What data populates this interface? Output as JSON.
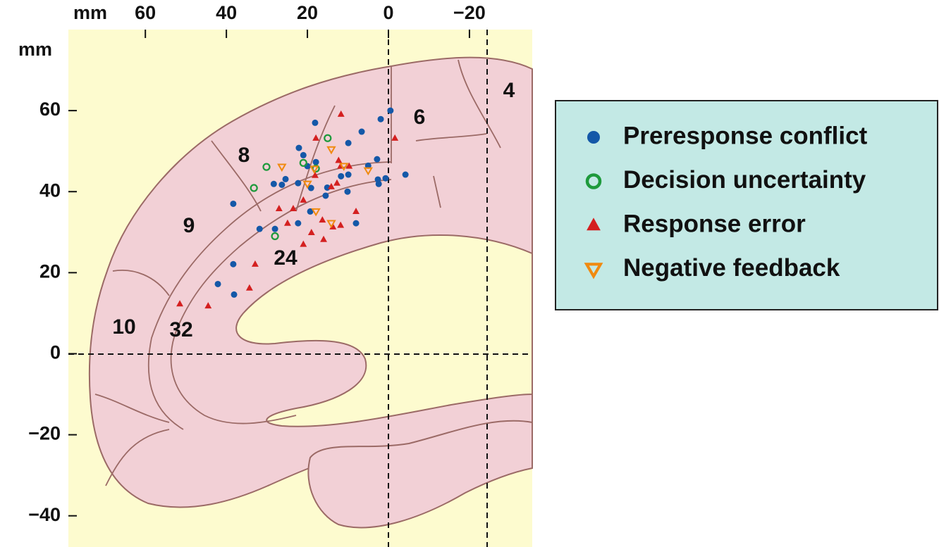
{
  "chart_data": {
    "type": "scatter",
    "x_label": "mm",
    "y_label": "mm",
    "xlim": [
      79,
      -35.5
    ],
    "ylim": [
      -47.7,
      80
    ],
    "xticks": [
      60,
      40,
      20,
      0,
      {
        "value": -20,
        "label": "−20"
      }
    ],
    "yticks": [
      60,
      40,
      20,
      0,
      {
        "value": -20,
        "label": "−20"
      },
      {
        "value": -40,
        "label": "−40"
      }
    ],
    "annotations": [
      "4",
      "6",
      "8",
      "9",
      "10",
      "32",
      "24"
    ],
    "series": [
      {
        "name": "Preresponse conflict",
        "color": "#1458a8",
        "marker": "circle",
        "x": [
          -0.5,
          1.9,
          18.1,
          6.6,
          9.9,
          22.1,
          21,
          2.8,
          5,
          17.9,
          20,
          9.9,
          11.7,
          -4.2,
          0.7,
          2.6,
          2.4,
          25.4,
          28.3,
          26.3,
          22.3,
          19.1,
          15.1,
          15.5,
          10.1,
          38.3,
          19.3,
          8,
          22.3,
          31.8,
          28,
          38.3,
          42.1,
          38.1
        ],
        "values": [
          60,
          57.9,
          57,
          54.8,
          52,
          50.8,
          49,
          48,
          46.4,
          47.3,
          46.3,
          44.2,
          43.8,
          44.2,
          43.3,
          43,
          41.9,
          43.1,
          41.9,
          41.7,
          42.1,
          40.9,
          41,
          39,
          40,
          37,
          35.1,
          32.2,
          32.2,
          30.8,
          30.8,
          22.1,
          17.2,
          14.6
        ]
      },
      {
        "name": "Decision uncertainty",
        "color": "#1e9a3c",
        "marker": "open-circle",
        "x": [
          15,
          30.1,
          21,
          17.9,
          33.2,
          28
        ],
        "values": [
          53.2,
          46.1,
          47.1,
          45.7,
          40.9,
          29
        ]
      },
      {
        "name": "Response error",
        "color": "#d42020",
        "marker": "triangle",
        "x": [
          11.7,
          -1.6,
          17.9,
          12.3,
          11.8,
          9.7,
          18.1,
          12.7,
          14.1,
          21,
          27,
          23.5,
          8,
          16.3,
          24.9,
          13.7,
          11.8,
          19,
          16,
          21,
          32.9,
          34.3,
          51.5,
          44.5
        ],
        "values": [
          59.1,
          53.2,
          53.2,
          47.7,
          46.3,
          46.3,
          44,
          42.1,
          41.2,
          37.9,
          35.8,
          35.8,
          35.1,
          33,
          32.2,
          31.3,
          31.7,
          29.9,
          28.2,
          27,
          22.1,
          16.2,
          12.3,
          11.8
        ]
      },
      {
        "name": "Negative feedback",
        "color": "#f08a10",
        "marker": "triangle-down",
        "x": [
          14.1,
          26.3,
          18.3,
          11,
          20,
          17.9,
          14.1,
          5
        ],
        "values": [
          50.4,
          46.1,
          45.6,
          46.3,
          41.9,
          35.1,
          32.2,
          45.2
        ]
      }
    ]
  }
}
